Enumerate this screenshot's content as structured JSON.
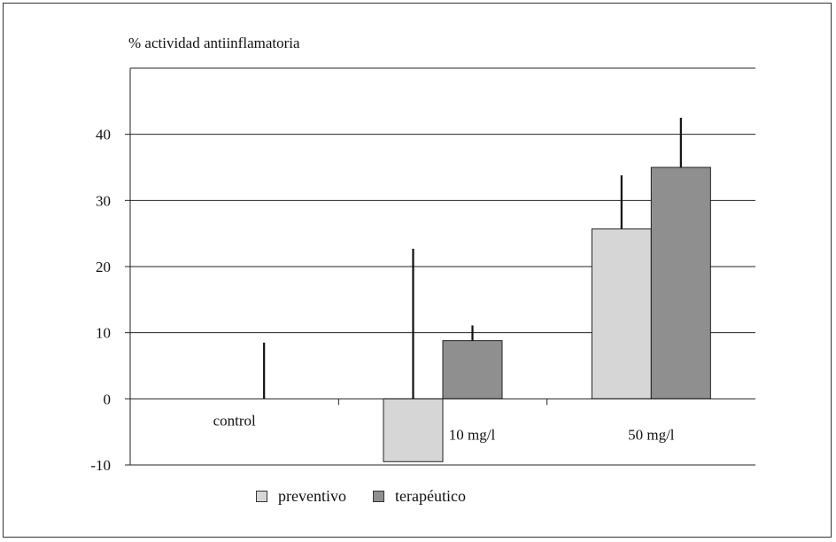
{
  "chart_data": {
    "type": "bar",
    "title": "% actividad antiinflamatoria",
    "categories": [
      "control",
      "10 mg/l",
      "50 mg/l"
    ],
    "ylim": [
      -10,
      50
    ],
    "yticks": [
      -10,
      0,
      10,
      20,
      30,
      40
    ],
    "grid": true,
    "legend_position": "bottom",
    "series": [
      {
        "name": "preventivo",
        "color": "#d6d6d6",
        "values": [
          0,
          -9.5,
          25.7
        ],
        "error_upper": [
          null,
          22.7,
          33.8
        ]
      },
      {
        "name": "terapéutico",
        "color": "#8f8f8f",
        "values": [
          0,
          8.8,
          35
        ],
        "error_upper": [
          8.5,
          11.1,
          42.5
        ]
      }
    ]
  }
}
